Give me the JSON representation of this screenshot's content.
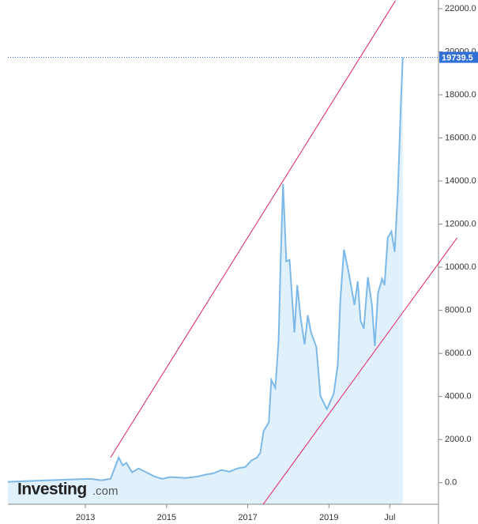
{
  "chart_data": {
    "type": "area",
    "logo": {
      "brand": "Investing",
      "suffix": ".com"
    },
    "xlim": [
      2011.09,
      2021.7
    ],
    "ylim": [
      -1000,
      22400
    ],
    "xticks": [
      2013,
      2015,
      2017,
      2019,
      {
        "value": 2020.5,
        "label": "Jul"
      }
    ],
    "yticks": [
      {
        "value": 0,
        "label": "0.0"
      },
      {
        "value": 2000,
        "label": "2000.0"
      },
      {
        "value": 4000,
        "label": "4000.0"
      },
      {
        "value": 6000,
        "label": "6000.0"
      },
      {
        "value": 8000,
        "label": "8000.0"
      },
      {
        "value": 10000,
        "label": "10000.0"
      },
      {
        "value": 12000,
        "label": "12000.0"
      },
      {
        "value": 14000,
        "label": "14000.0"
      },
      {
        "value": 16000,
        "label": "16000.0"
      },
      {
        "value": 18000,
        "label": "18000.0"
      },
      {
        "value": 20000,
        "label": "20000.0"
      },
      {
        "value": 22000,
        "label": "22000.0"
      }
    ],
    "last_value": 19739.5,
    "series": [
      {
        "color": "#7db9e8",
        "fill": "#e1f1fb",
        "x": [
          2011.09,
          2012.06,
          2012.65,
          2013.14,
          2013.39,
          2013.62,
          2013.82,
          2013.92,
          2014.01,
          2014.15,
          2014.31,
          2014.5,
          2014.7,
          2014.89,
          2015.09,
          2015.48,
          2015.77,
          2015.96,
          2016.16,
          2016.35,
          2016.55,
          2016.74,
          2016.94,
          2017.09,
          2017.23,
          2017.31,
          2017.39,
          2017.52,
          2017.58,
          2017.68,
          2017.76,
          2017.81,
          2017.87,
          2017.95,
          2018.03,
          2018.15,
          2018.22,
          2018.3,
          2018.4,
          2018.48,
          2018.56,
          2018.69,
          2018.79,
          2018.95,
          2019.12,
          2019.22,
          2019.28,
          2019.37,
          2019.49,
          2019.63,
          2019.71,
          2019.78,
          2019.86,
          2019.96,
          2020.06,
          2020.13,
          2020.21,
          2020.31,
          2020.37,
          2020.45,
          2020.54,
          2020.62,
          2020.7,
          2020.78,
          2020.82
        ],
        "values": [
          40,
          110,
          150,
          180,
          110,
          180,
          1170,
          800,
          920,
          480,
          660,
          480,
          290,
          180,
          260,
          220,
          290,
          370,
          440,
          590,
          510,
          660,
          730,
          1030,
          1170,
          1390,
          2400,
          2800,
          4770,
          4400,
          6600,
          10270,
          13860,
          10270,
          10340,
          6970,
          9170,
          7700,
          6420,
          7770,
          6970,
          6300,
          4030,
          3410,
          4140,
          5500,
          8430,
          10820,
          9720,
          8250,
          9350,
          7520,
          7150,
          9530,
          8250,
          6340,
          8800,
          9460,
          9170,
          11370,
          11660,
          10710,
          13570,
          17970,
          19739.5
        ]
      }
    ],
    "trendlines": [
      {
        "color": "#e0206e",
        "x": [
          2013.62,
          2020.64
        ],
        "y": [
          1173,
          22370
        ]
      },
      {
        "color": "#e0206e",
        "x": [
          2017.13,
          2022.16
        ],
        "y": [
          -1650,
          11367
        ]
      }
    ]
  }
}
